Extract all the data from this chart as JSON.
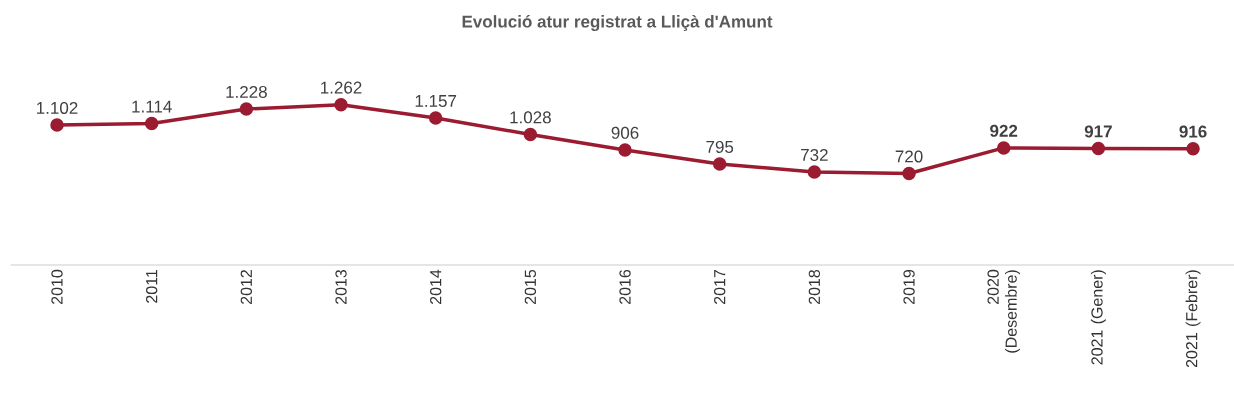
{
  "chart_data": {
    "type": "line",
    "title": "Evolució atur registrat a Lliçà d'Amunt",
    "categories": [
      "2010",
      "2011",
      "2012",
      "2013",
      "2014",
      "2015",
      "2016",
      "2017",
      "2018",
      "2019",
      "2020 (Desembre)",
      "2021 (Gener)",
      "2021 (Febrer)"
    ],
    "series": [
      {
        "color": "#9b1b30",
        "values": [
          1102,
          1114,
          1228,
          1262,
          1157,
          1028,
          906,
          795,
          732,
          720,
          922,
          917,
          916
        ],
        "value_labels": [
          "1.102",
          "1.114",
          "1.228",
          "1.262",
          "1.157",
          "1.028",
          "906",
          "795",
          "732",
          "720",
          "**922**",
          "**917**",
          "**916**"
        ]
      }
    ],
    "marker": "circle",
    "line_style": "solid"
  }
}
